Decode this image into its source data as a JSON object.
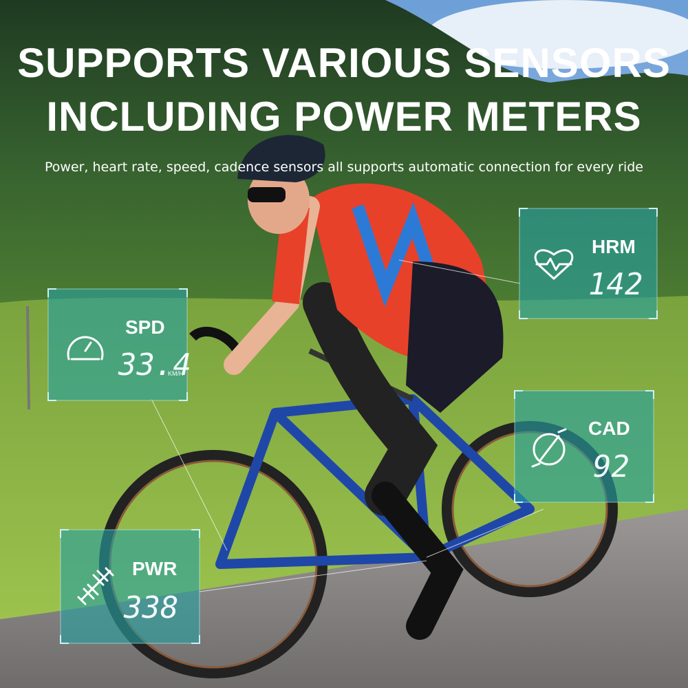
{
  "headline": [
    "SUPPORTS VARIOUS SENSORS",
    "INCLUDING POWER METERS"
  ],
  "subtitle": "Power, heart rate, speed, cadence sensors all supports automatic connection for every ride",
  "cards": [
    {
      "label": "SPD",
      "value": 33.4,
      "unit": "KM/H"
    },
    {
      "label": "HRM",
      "value": 142
    },
    {
      "label": "CAD",
      "value": 92
    },
    {
      "label": "PWR",
      "value": 338
    }
  ]
}
